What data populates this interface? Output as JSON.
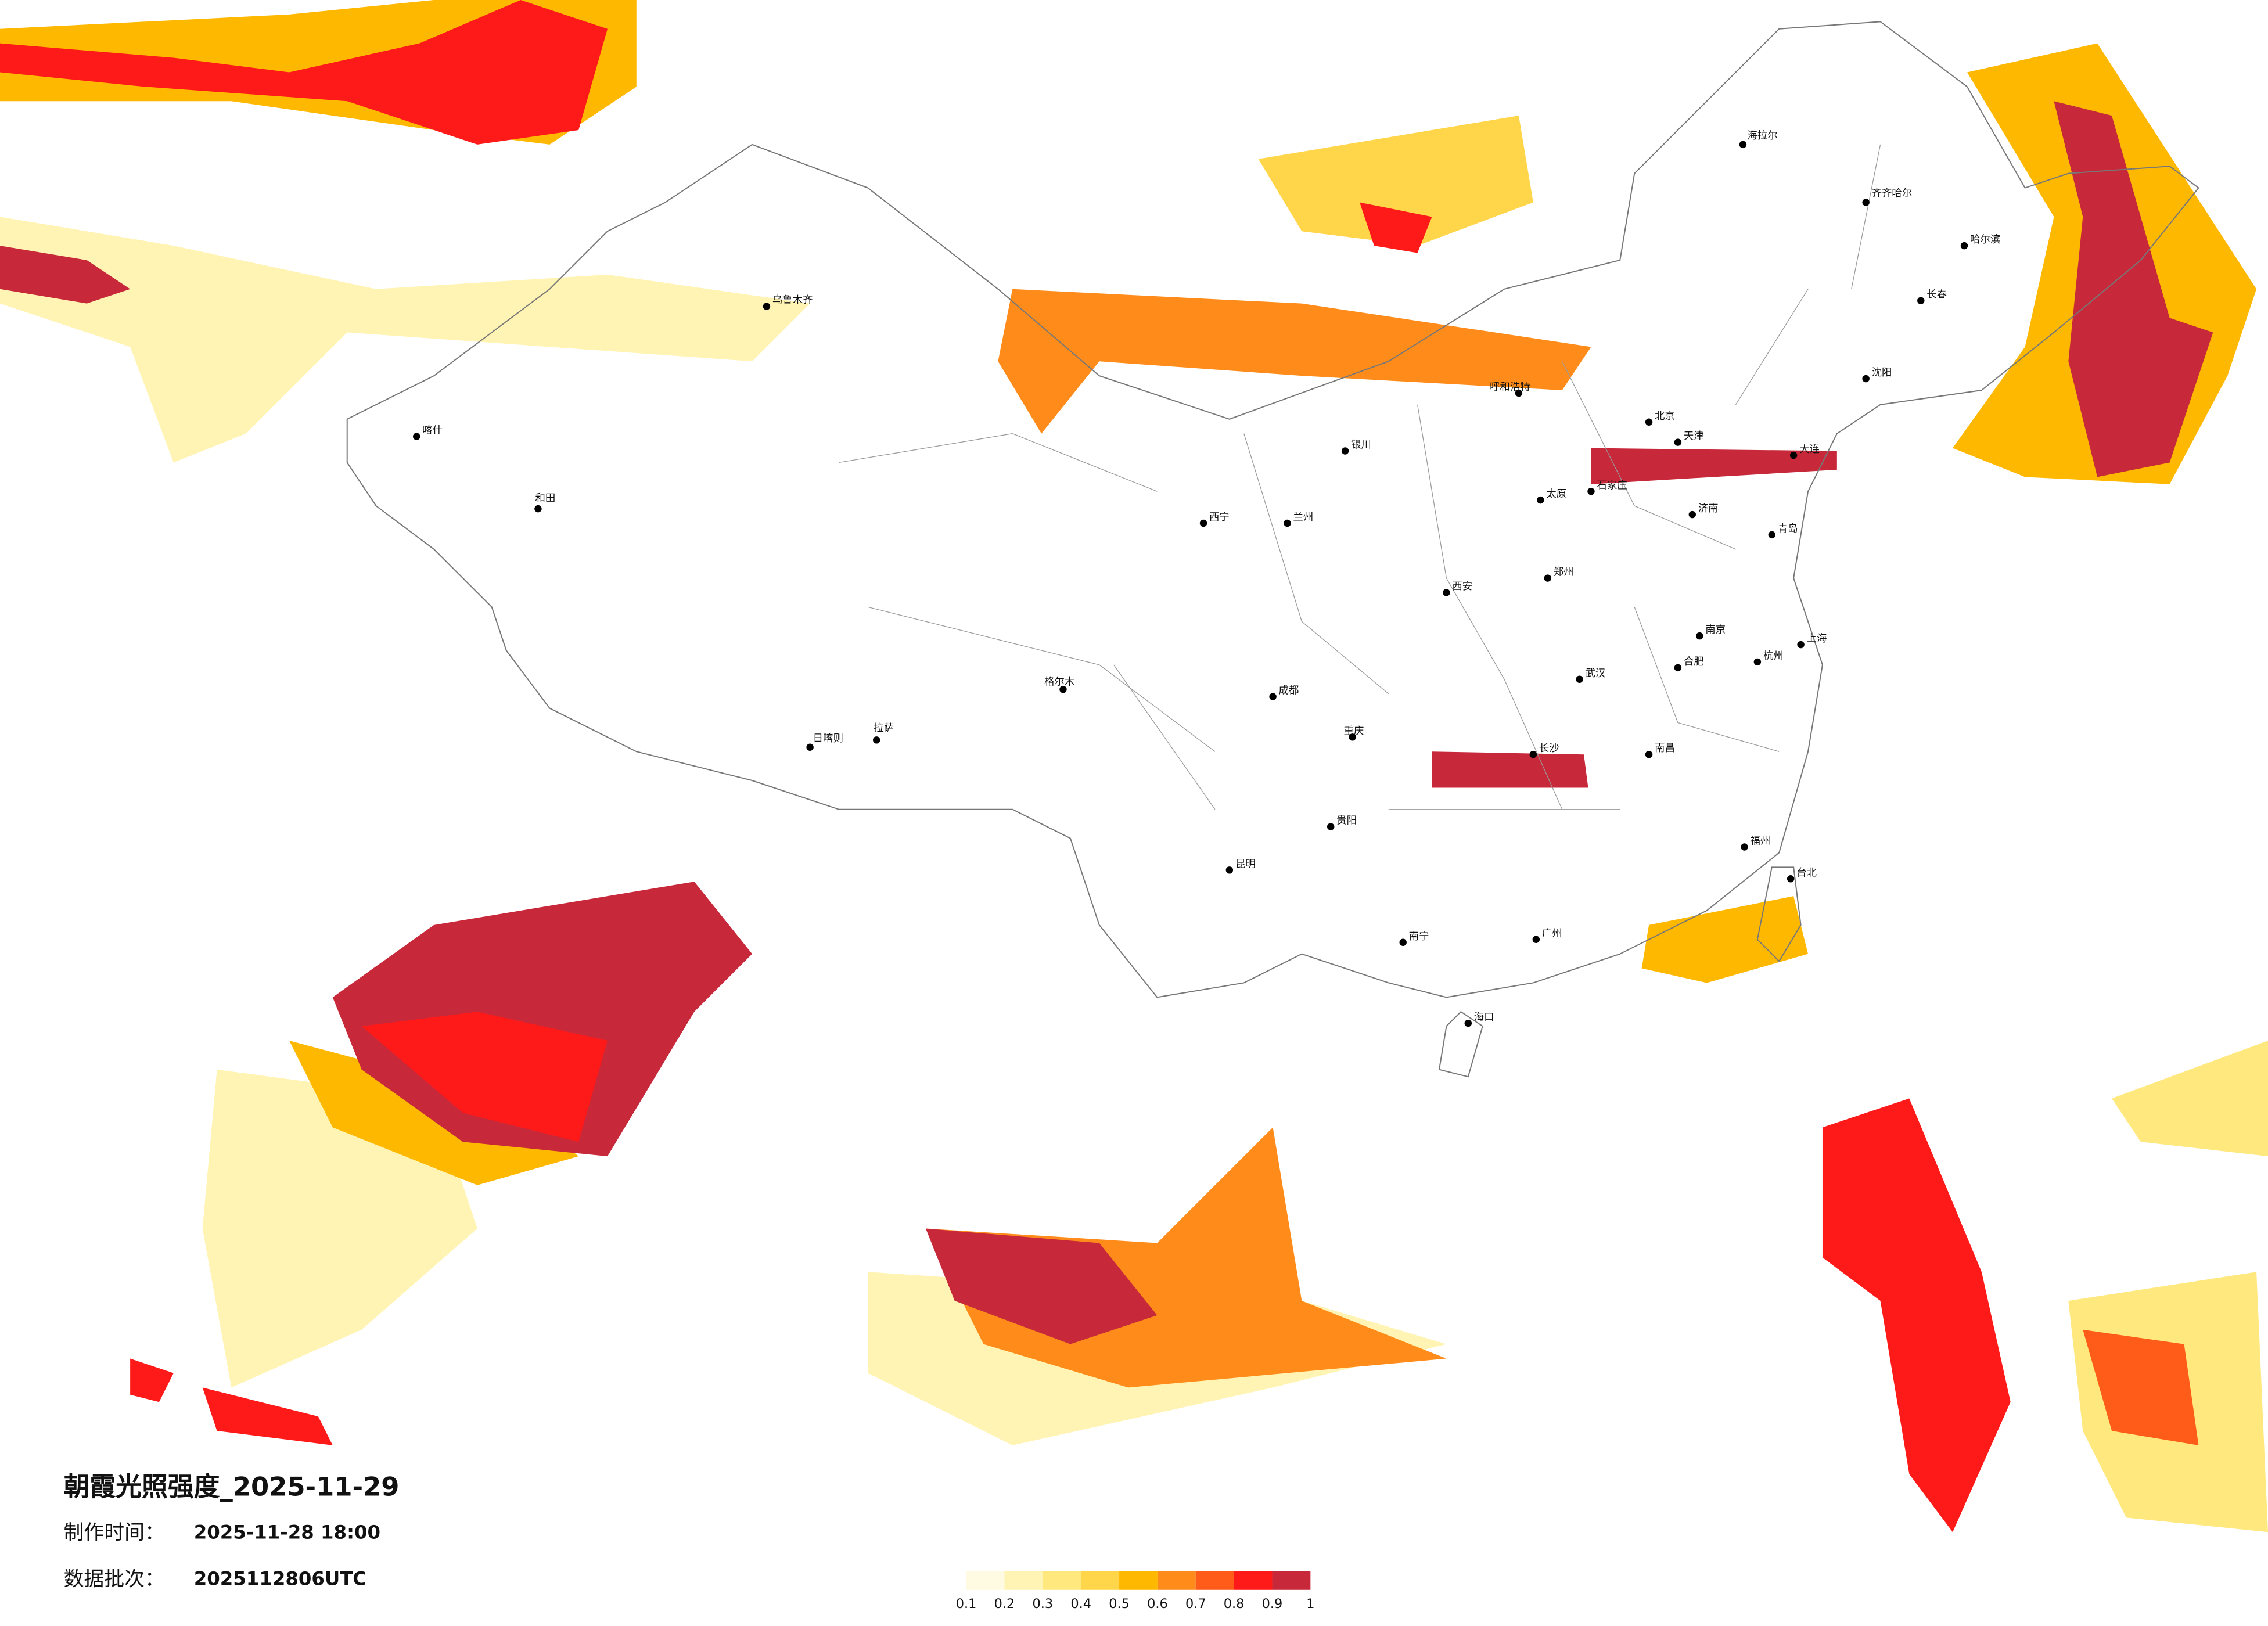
{
  "title": "朝霞光照强度_2025-11-29",
  "info": [
    {
      "label": "制作时间：",
      "value": "2025-11-28 18:00"
    },
    {
      "label": "数据批次：",
      "value": "2025112806UTC"
    }
  ],
  "legend": {
    "ticks": [
      0.1,
      0.2,
      0.3,
      0.4,
      0.5,
      0.6,
      0.7,
      0.8,
      0.9,
      1
    ],
    "colors": [
      "#fffbe3",
      "#fff4b3",
      "#ffe97f",
      "#ffd54a",
      "#ffb800",
      "#ff8c1a",
      "#ff5c1a",
      "#ff1a1a",
      "#c7283a"
    ]
  },
  "cities": [
    "哈尔滨",
    "长春",
    "沈阳",
    "北京",
    "天津",
    "石家庄",
    "太原",
    "呼和浩特",
    "西安",
    "兰州",
    "西宁",
    "银川",
    "乌鲁木齐",
    "拉萨",
    "日喀则",
    "成都",
    "重庆",
    "贵阳",
    "昆明",
    "南宁",
    "广州",
    "长沙",
    "武汉",
    "南昌",
    "福州",
    "杭州",
    "南京",
    "上海",
    "济南",
    "郑州",
    "合肥",
    "海口",
    "台北",
    "和田",
    "喀什",
    "格尔木",
    "齐齐哈尔",
    "海拉尔",
    "大连",
    "青岛"
  ]
}
